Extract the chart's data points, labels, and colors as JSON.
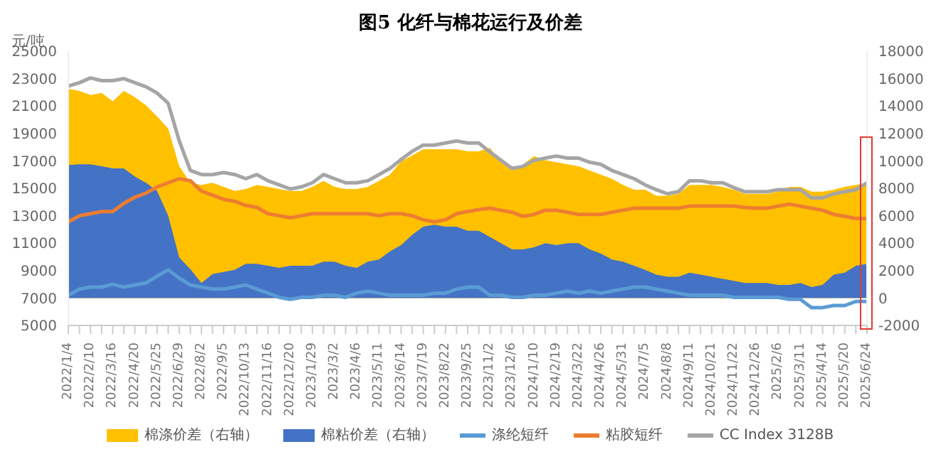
{
  "chart_data": {
    "type": "area",
    "title": "图5  化纤与棉花运行及价差",
    "ylabel": "元/吨",
    "categories": [
      "2022/1/4",
      null,
      "2022/2/10",
      null,
      "2022/3/16",
      null,
      "2022/4/20",
      null,
      "2022/5/25",
      null,
      "2022/6/29",
      null,
      "2022/8/2",
      null,
      "2022/9/5",
      null,
      "2022/10/13",
      null,
      "2022/11/16",
      null,
      "2022/12/20",
      null,
      "2023/1/29",
      null,
      "2023/3/2",
      null,
      "2023/4/6",
      null,
      "2023/5/11",
      null,
      "2023/6/14",
      null,
      "2023/7/19",
      null,
      "2023/8/22",
      null,
      "2023/9/25",
      null,
      "2023/11/2",
      null,
      "2023/12/6",
      null,
      "2024/1/10",
      null,
      "2024/2/19",
      null,
      "2024/3/22",
      null,
      "2024/4/26",
      null,
      "2024/5/31",
      null,
      "2024/7/5",
      null,
      "2024/8/8",
      null,
      "2024/9/11",
      null,
      "2024/10/21",
      null,
      "2024/11/22",
      null,
      "2024/12/26",
      null,
      "2025/2/6",
      null,
      "2025/3/11",
      null,
      "2025/4/14",
      null,
      "2025/5/20",
      null,
      "2025/6/24"
    ],
    "series": [
      {
        "name": "棉涤价差（右轴）",
        "axis": "y2",
        "color": "#ffc000",
        "values": [
          15250,
          15100,
          14800,
          14950,
          14350,
          15100,
          14650,
          14050,
          13250,
          12350,
          9600,
          8400,
          8250,
          8400,
          8100,
          7800,
          7950,
          8250,
          8100,
          7950,
          7800,
          7800,
          8100,
          8550,
          8100,
          7950,
          7950,
          8100,
          8550,
          9000,
          9950,
          10400,
          10850,
          10850,
          10850,
          10850,
          10700,
          10700,
          10950,
          9900,
          9300,
          9750,
          10350,
          10050,
          9900,
          9750,
          9600,
          9300,
          9000,
          8700,
          8250,
          7900,
          7900,
          7450,
          7450,
          7600,
          8250,
          8250,
          8250,
          8100,
          7900,
          7600,
          7600,
          7600,
          7750,
          8100,
          8100,
          7750,
          7750,
          7900,
          8100,
          8250,
          8400
        ]
      },
      {
        "name": "棉粘价差（右轴）",
        "axis": "y2",
        "color": "#4472c4",
        "values": [
          9700,
          9750,
          9750,
          9600,
          9450,
          9450,
          8850,
          8400,
          7800,
          6000,
          2950,
          2100,
          1100,
          1750,
          1900,
          2050,
          2500,
          2500,
          2350,
          2200,
          2350,
          2350,
          2350,
          2650,
          2650,
          2350,
          2200,
          2650,
          2800,
          3400,
          3850,
          4600,
          5200,
          5350,
          5200,
          5200,
          4900,
          4900,
          4450,
          4000,
          3550,
          3550,
          3700,
          4000,
          3850,
          4000,
          4000,
          3550,
          3250,
          2800,
          2650,
          2350,
          2050,
          1700,
          1550,
          1550,
          1850,
          1700,
          1550,
          1400,
          1250,
          1100,
          1100,
          1100,
          950,
          950,
          1100,
          800,
          950,
          1700,
          1850,
          2350,
          2500
        ]
      },
      {
        "name": "涤纶短纤",
        "type": "line",
        "color": "#5b9bd5",
        "values": [
          7200,
          7650,
          7800,
          7800,
          8000,
          7800,
          7950,
          8100,
          8600,
          9050,
          8450,
          7950,
          7800,
          7650,
          7650,
          7800,
          7950,
          7650,
          7350,
          7050,
          6900,
          7050,
          7050,
          7200,
          7200,
          7050,
          7350,
          7500,
          7350,
          7200,
          7200,
          7200,
          7200,
          7350,
          7350,
          7650,
          7800,
          7800,
          7200,
          7200,
          7050,
          7050,
          7200,
          7200,
          7350,
          7500,
          7350,
          7500,
          7350,
          7500,
          7650,
          7800,
          7800,
          7650,
          7500,
          7350,
          7200,
          7200,
          7200,
          7200,
          7050,
          7050,
          7050,
          7050,
          7050,
          6900,
          6900,
          6300,
          6300,
          6450,
          6450,
          6750,
          6750
        ]
      },
      {
        "name": "粘胶短纤",
        "type": "line",
        "color": "#ed7d31",
        "values": [
          12550,
          13000,
          13150,
          13300,
          13300,
          13900,
          14350,
          14650,
          15100,
          15400,
          15700,
          15550,
          14800,
          14500,
          14200,
          14050,
          13750,
          13600,
          13150,
          13000,
          12850,
          13000,
          13150,
          13150,
          13150,
          13150,
          13150,
          13150,
          13000,
          13150,
          13150,
          13000,
          12700,
          12550,
          12700,
          13150,
          13300,
          13450,
          13550,
          13400,
          13250,
          12950,
          13100,
          13400,
          13400,
          13250,
          13100,
          13100,
          13100,
          13250,
          13400,
          13550,
          13550,
          13550,
          13550,
          13550,
          13700,
          13700,
          13700,
          13700,
          13700,
          13600,
          13550,
          13550,
          13700,
          13850,
          13700,
          13550,
          13400,
          13100,
          12950,
          12800,
          12800
        ]
      },
      {
        "name": "CC Index 3128B",
        "type": "line",
        "color": "#a5a5a5",
        "values": [
          22450,
          22700,
          23050,
          22850,
          22850,
          23000,
          22700,
          22400,
          21950,
          21200,
          18450,
          16300,
          16000,
          16000,
          16150,
          16000,
          15700,
          16000,
          15550,
          15250,
          14950,
          15100,
          15400,
          16000,
          15700,
          15400,
          15400,
          15550,
          16000,
          16450,
          17100,
          17700,
          18150,
          18150,
          18300,
          18450,
          18300,
          18300,
          17650,
          17050,
          16450,
          16600,
          17050,
          17200,
          17350,
          17200,
          17200,
          16900,
          16750,
          16300,
          16000,
          15700,
          15250,
          14900,
          14600,
          14750,
          15550,
          15550,
          15400,
          15400,
          15050,
          14750,
          14750,
          14750,
          14900,
          14900,
          14900,
          14300,
          14300,
          14600,
          14750,
          14900,
          15400
        ]
      }
    ],
    "ylim": [
      5000,
      25000
    ],
    "yticks": [
      5000,
      7000,
      9000,
      11000,
      13000,
      15000,
      17000,
      19000,
      21000,
      23000,
      25000
    ],
    "y2lim": [
      -2000,
      18000
    ],
    "y2ticks": [
      -2000,
      0,
      2000,
      4000,
      6000,
      8000,
      10000,
      12000,
      14000,
      16000,
      18000
    ],
    "grid": false,
    "legend": "bottom",
    "marker": "none",
    "line_style": "solid"
  }
}
